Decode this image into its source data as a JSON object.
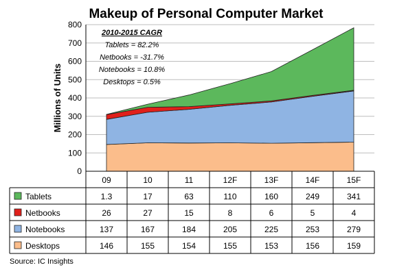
{
  "chart_data": {
    "type": "area",
    "title": "Makeup of Personal Computer Market",
    "ylabel": "Millions of Units",
    "xlabel": "",
    "ylim": [
      0,
      800
    ],
    "yticks": [
      0,
      100,
      200,
      300,
      400,
      500,
      600,
      700,
      800
    ],
    "grid": true,
    "stacked": true,
    "categories": [
      "09",
      "10",
      "11",
      "12F",
      "13F",
      "14F",
      "15F"
    ],
    "series": [
      {
        "name": "Tablets",
        "color": "#5cb85c",
        "values": [
          1.3,
          17,
          63,
          110,
          160,
          249,
          341
        ]
      },
      {
        "name": "Netbooks",
        "color": "#e0201b",
        "values": [
          26,
          27,
          15,
          8,
          6,
          5,
          4
        ]
      },
      {
        "name": "Notebooks",
        "color": "#8fb4e3",
        "values": [
          137,
          167,
          184,
          205,
          225,
          253,
          279
        ]
      },
      {
        "name": "Desktops",
        "color": "#fbbd8b",
        "values": [
          146,
          155,
          154,
          155,
          153,
          156,
          159
        ]
      }
    ],
    "stack_order": [
      "Desktops",
      "Notebooks",
      "Netbooks",
      "Tablets"
    ],
    "table_cells": [
      [
        "1.3",
        "17",
        "63",
        "110",
        "160",
        "249",
        "341"
      ],
      [
        "26",
        "27",
        "15",
        "8",
        "6",
        "5",
        "4"
      ],
      [
        "137",
        "167",
        "184",
        "205",
        "225",
        "253",
        "279"
      ],
      [
        "146",
        "155",
        "154",
        "155",
        "153",
        "156",
        "159"
      ]
    ],
    "annotation": {
      "heading": "2010-2015 CAGR",
      "lines": [
        "Tablets = 82.2%",
        "Netbooks = -31.7%",
        "Notebooks = 10.8%",
        "Desktops = 0.5%"
      ]
    },
    "source": "Source: IC Insights"
  }
}
